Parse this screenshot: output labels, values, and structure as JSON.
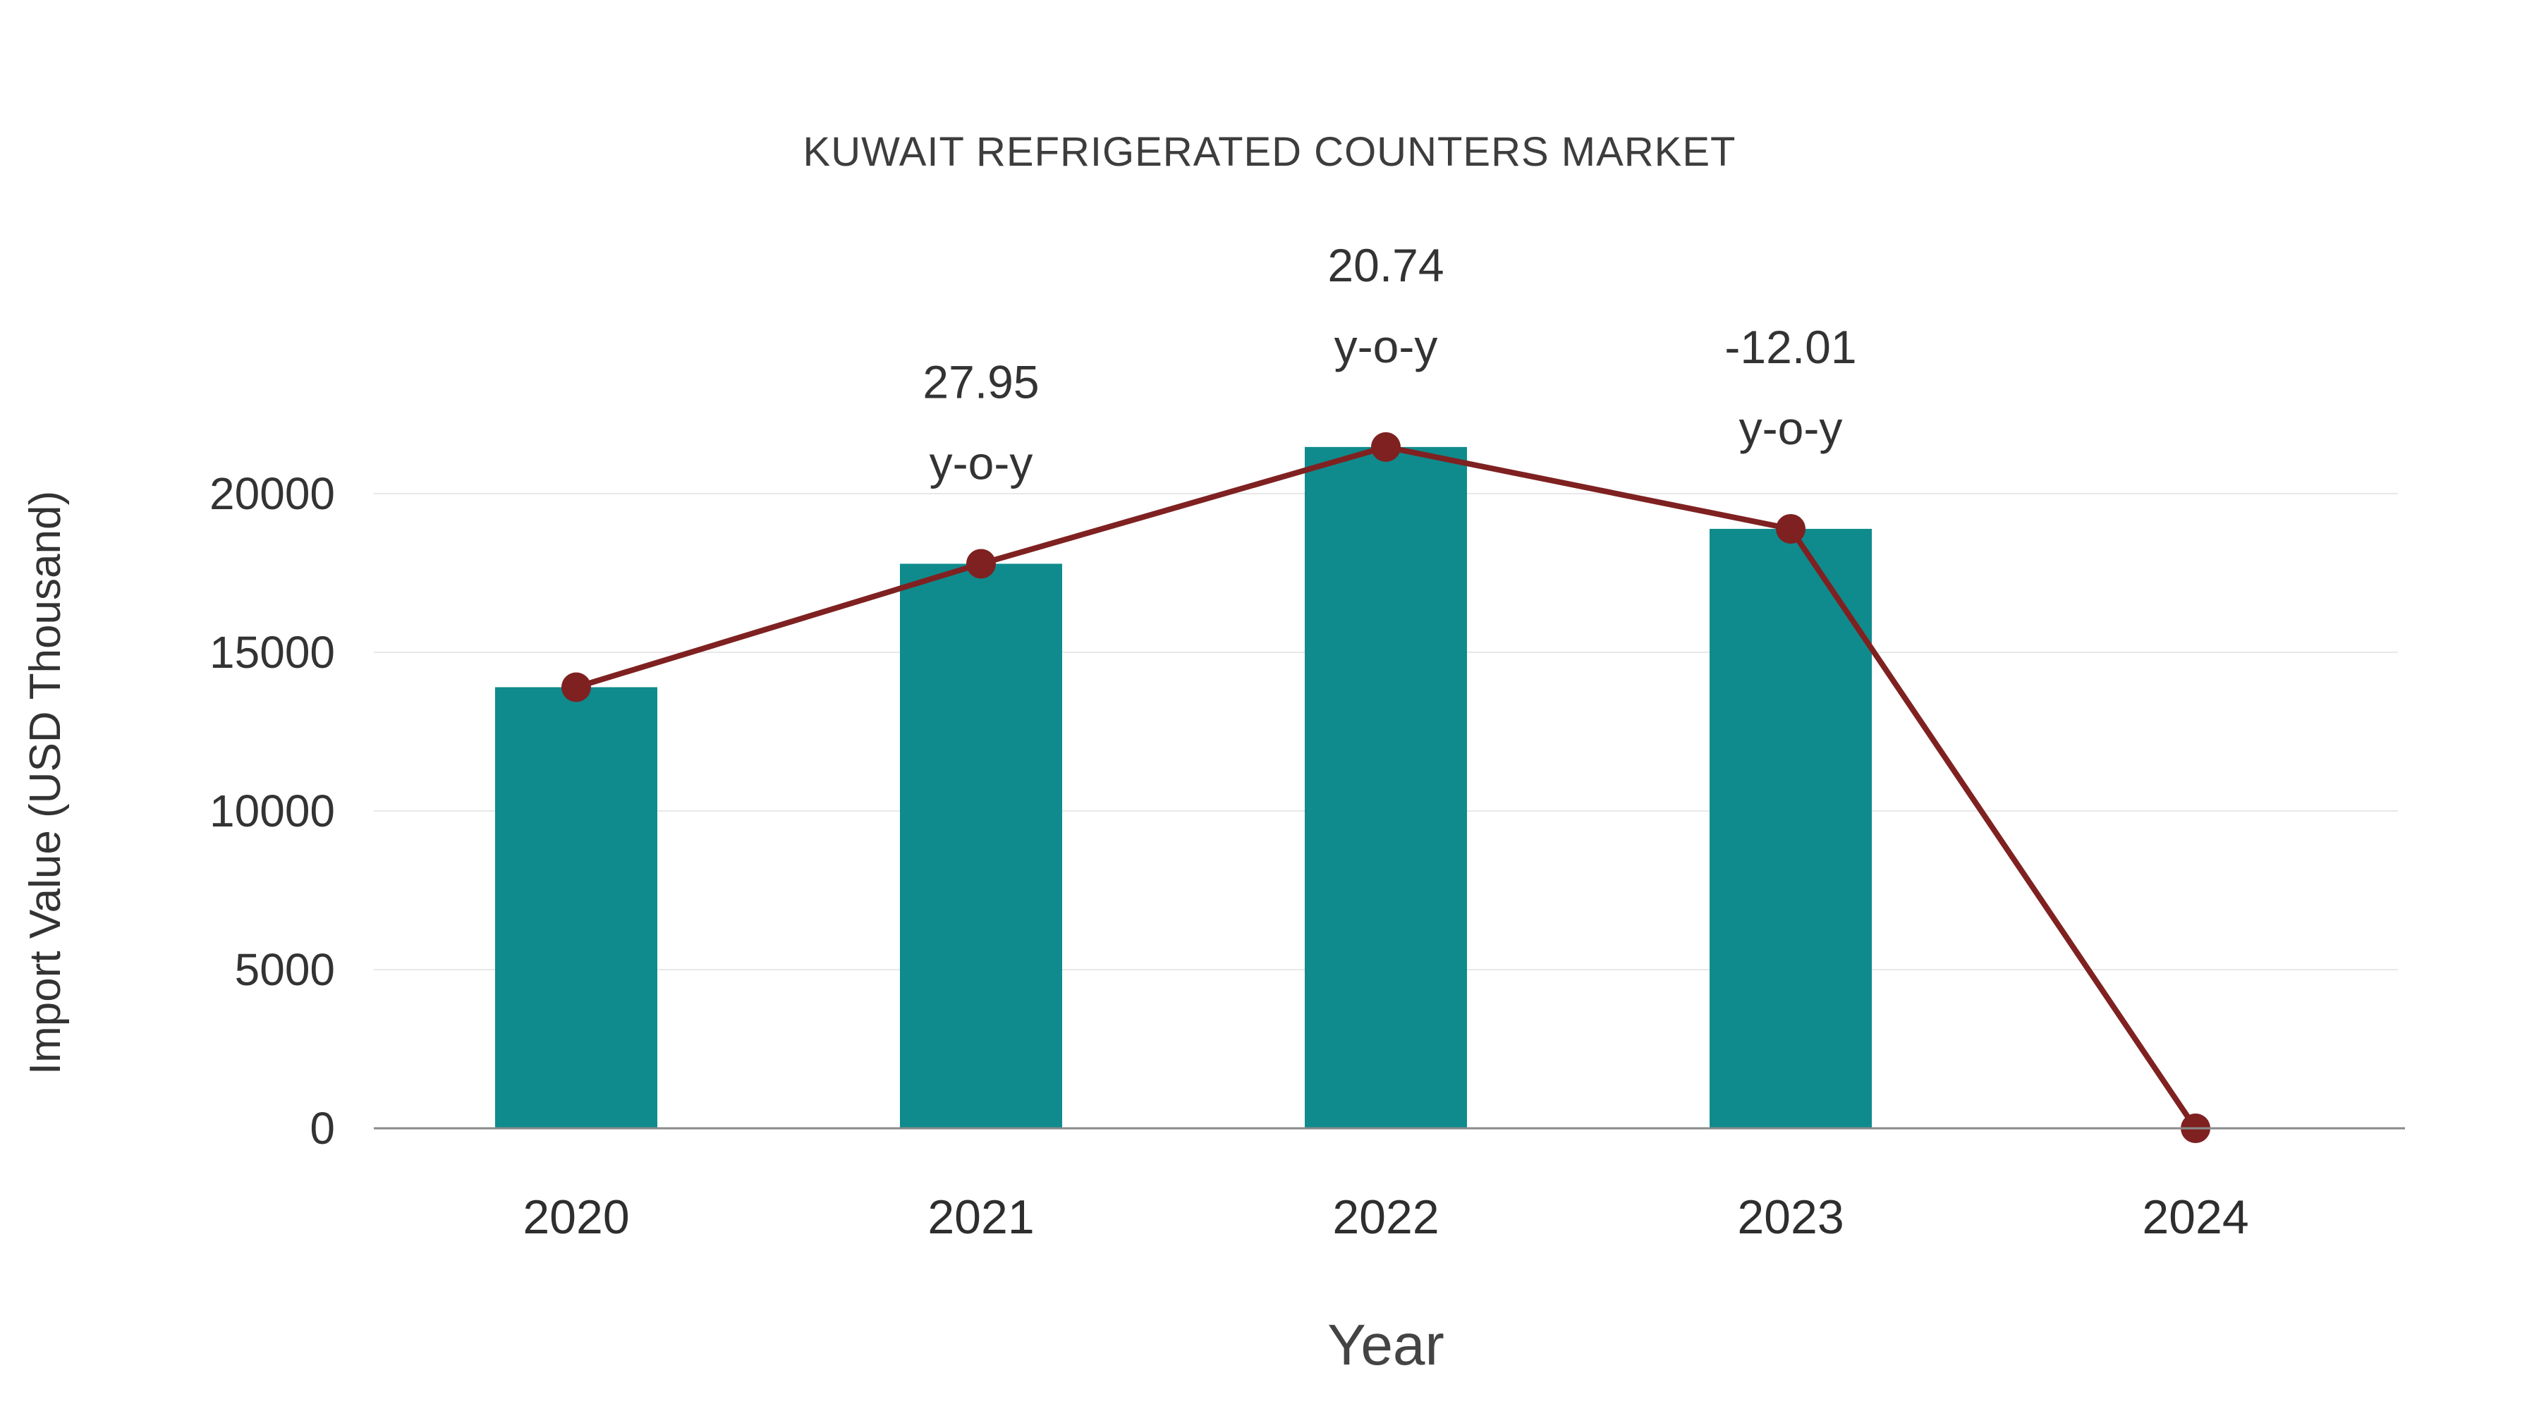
{
  "chart_data": {
    "type": "bar",
    "title": "KUWAIT REFRIGERATED COUNTERS MARKET",
    "xlabel": "Year",
    "ylabel": "Import Value (USD Thousand)",
    "categories": [
      "2020",
      "2021",
      "2022",
      "2023",
      "2024"
    ],
    "series": [
      {
        "name": "Import Value (bars)",
        "type": "bar",
        "color": "#0f8b8d",
        "values": [
          13900,
          17790,
          21470,
          18890,
          null
        ]
      },
      {
        "name": "Import Value trend (line)",
        "type": "line",
        "color": "#7f2121",
        "values": [
          13900,
          17790,
          21470,
          18890,
          0
        ]
      }
    ],
    "annotations": [
      {
        "category": "2021",
        "line1": "27.95",
        "line2": "y-o-y"
      },
      {
        "category": "2022",
        "line1": "20.74",
        "line2": "y-o-y"
      },
      {
        "category": "2023",
        "line1": "-12.01",
        "line2": "y-o-y"
      }
    ],
    "ylim": [
      0,
      22500
    ],
    "yticks": [
      0,
      5000,
      10000,
      15000,
      20000
    ],
    "grid": true,
    "legend_position": "none",
    "colors": {
      "bar": "#0f8b8d",
      "line": "#7f2121",
      "grid": "#e8e8e8",
      "axis": "#8a8a8a",
      "text": "#333333"
    }
  }
}
